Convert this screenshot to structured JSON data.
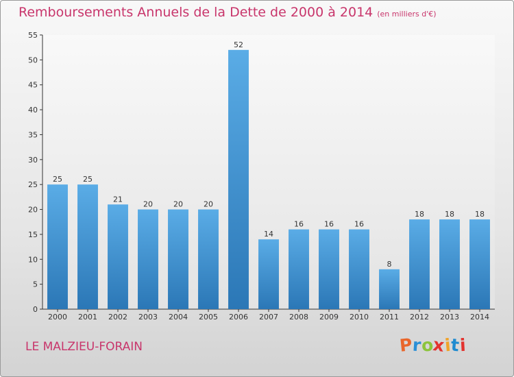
{
  "title": {
    "main": "Remboursements Annuels de la Dette de 2000 à 2014",
    "unit": "(en milliers d'€)"
  },
  "commune": "LE MALZIEU-FORAIN",
  "logo": {
    "letters": [
      "P",
      "r",
      "o",
      "x",
      "i",
      "t",
      "i"
    ],
    "colors": [
      "#e9662b",
      "#2b8fd6",
      "#8cc43c",
      "#e3332f",
      "#f0a32a",
      "#1f8bd0",
      "#e3332f"
    ]
  },
  "colors": {
    "title": "#c8356b",
    "bar_top": "#5aace6",
    "bar_bottom": "#2b77b6"
  },
  "chart_data": {
    "type": "bar",
    "categories": [
      "2000",
      "2001",
      "2002",
      "2003",
      "2004",
      "2005",
      "2006",
      "2007",
      "2008",
      "2009",
      "2010",
      "2011",
      "2012",
      "2013",
      "2014"
    ],
    "values": [
      25,
      25,
      21,
      20,
      20,
      20,
      52,
      14,
      16,
      16,
      16,
      8,
      18,
      18,
      18
    ],
    "data_labels": [
      "25",
      "25",
      "21",
      "20",
      "20",
      "20",
      "52",
      "14",
      "16",
      "16",
      "16",
      "8",
      "18",
      "18",
      "18"
    ],
    "yticks": [
      0,
      5,
      10,
      15,
      20,
      25,
      30,
      35,
      40,
      45,
      50,
      55
    ],
    "ylim": [
      0,
      55
    ],
    "grid": false,
    "legend": "none"
  }
}
